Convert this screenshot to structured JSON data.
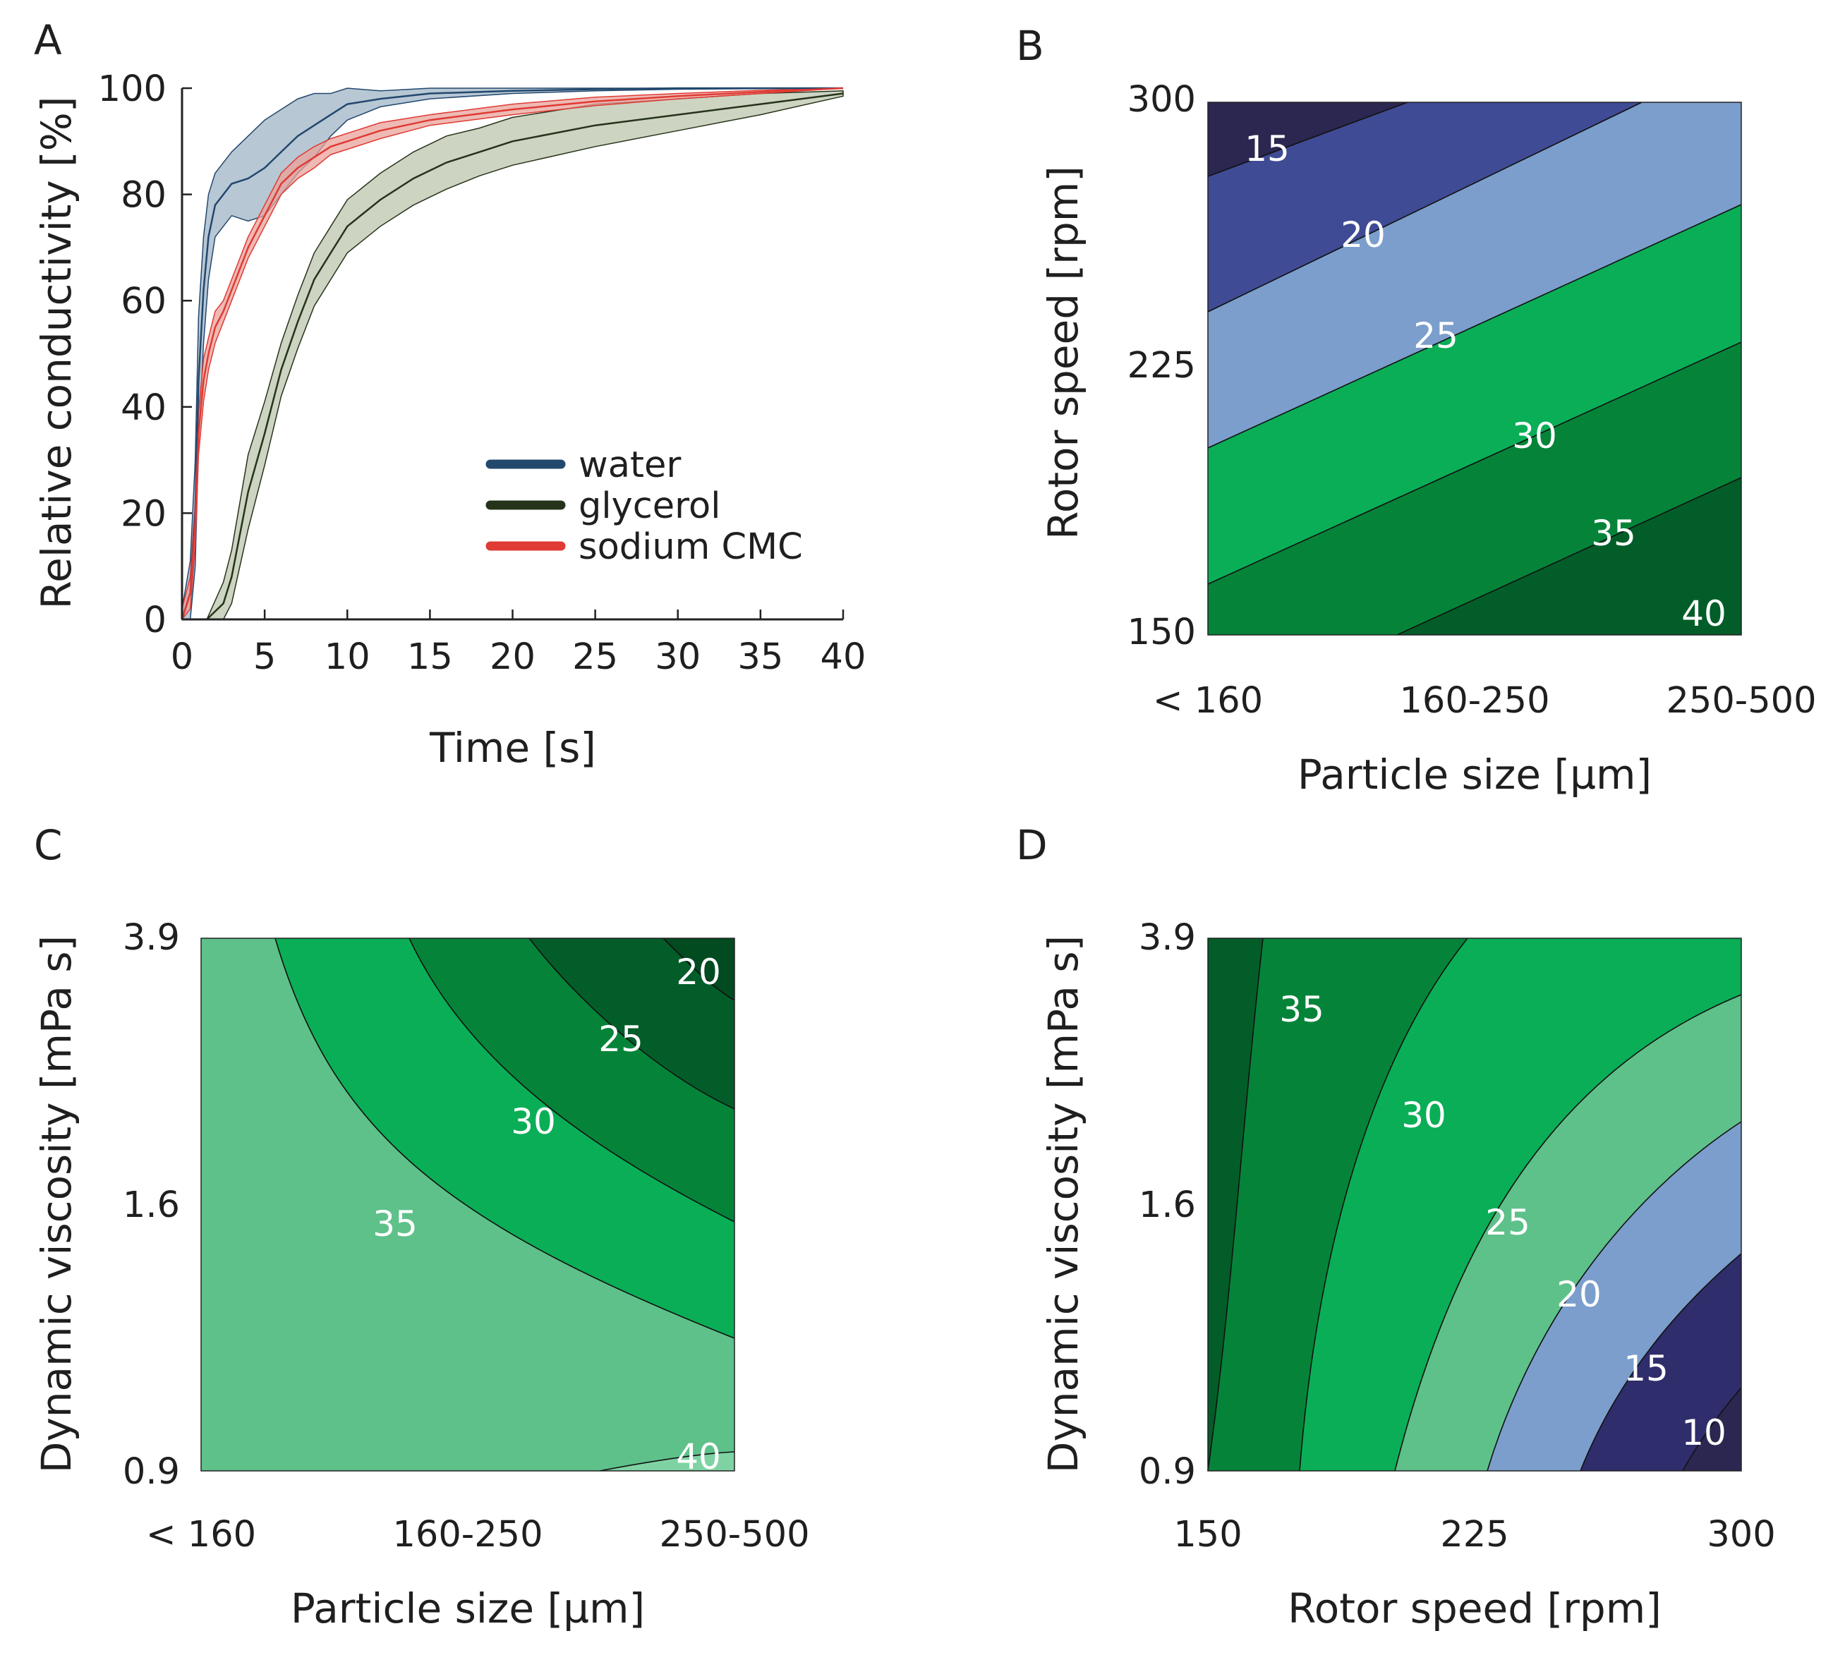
{
  "colors": {
    "water": "#23486e",
    "water_band": "#9fb4c6",
    "glycerol": "#26331a",
    "glycerol_band": "#bcc5ae",
    "sodium_cmc": "#e03a34",
    "sodium_cmc_band": "#eaa39b",
    "levels": {
      "5": "#2b2751",
      "10": "#2f2d6b",
      "15": "#3f4b94",
      "20": "#7b9ecc",
      "25": "#5ec18a",
      "30": "#0aae56",
      "35": "#058439",
      "40": "#035d29"
    }
  },
  "chart_data": [
    {
      "id": "A",
      "panel_label": "A",
      "type": "line",
      "xlabel": "Time [s]",
      "ylabel": "Relative conductivity [%]",
      "xlim": [
        0,
        40
      ],
      "ylim": [
        0,
        100
      ],
      "xticks": [
        "0",
        "5",
        "10",
        "15",
        "20",
        "25",
        "30",
        "35",
        "40"
      ],
      "yticks": [
        "0",
        "20",
        "40",
        "60",
        "80",
        "100"
      ],
      "legend": {
        "placement": "center-right",
        "entries": [
          "water",
          "glycerol",
          "sodium CMC"
        ]
      },
      "series": [
        {
          "name": "water",
          "x": [
            0,
            0.5,
            0.8,
            1.0,
            1.3,
            1.6,
            2,
            2.5,
            3,
            4,
            5,
            6,
            7,
            8,
            9,
            10,
            12,
            15,
            20,
            25,
            30,
            35,
            40
          ],
          "y": [
            0,
            5,
            20,
            45,
            62,
            72,
            78,
            80,
            82,
            83,
            85,
            88,
            91,
            93,
            95,
            97,
            98,
            99,
            99.5,
            99.8,
            100,
            100,
            100
          ],
          "band": [
            2,
            6,
            10,
            12,
            10,
            8,
            6,
            6,
            6,
            8,
            9,
            8,
            7,
            6,
            4,
            3,
            1.5,
            1,
            0.5,
            0.3,
            0.2,
            0.1,
            0
          ]
        },
        {
          "name": "glycerol",
          "x": [
            0,
            1.5,
            2.5,
            3,
            3.5,
            4,
            5,
            6,
            7,
            8,
            9,
            10,
            12,
            14,
            16,
            18,
            20,
            25,
            30,
            35,
            40
          ],
          "y": [
            0,
            0,
            3,
            8,
            16,
            24,
            35,
            47,
            56,
            64,
            69,
            74,
            79,
            83,
            86,
            88,
            90,
            93,
            95,
            97,
            99
          ],
          "band": [
            0,
            0,
            4,
            5,
            6,
            7,
            6,
            5,
            5,
            5,
            5,
            5,
            5,
            5,
            5,
            4.5,
            4.5,
            4,
            3,
            2,
            0.5
          ]
        },
        {
          "name": "sodium CMC",
          "x": [
            0,
            0.5,
            0.8,
            1.0,
            1.3,
            1.6,
            2,
            2.5,
            3,
            3.5,
            4,
            5,
            6,
            7,
            8,
            9,
            10,
            12,
            15,
            20,
            25,
            30,
            35,
            40
          ],
          "y": [
            0,
            5,
            18,
            35,
            45,
            50,
            55,
            58,
            62,
            66,
            70,
            76,
            82,
            85,
            87,
            89,
            90,
            92,
            94,
            96,
            97.5,
            98.5,
            99.3,
            100
          ],
          "band": [
            2,
            3,
            4,
            4,
            4,
            3,
            3,
            2,
            2,
            2,
            2,
            2,
            2,
            2,
            2,
            1.5,
            1.5,
            1.5,
            1,
            1,
            0.8,
            0.5,
            0.3,
            0
          ]
        }
      ]
    },
    {
      "id": "B",
      "panel_label": "B",
      "type": "contour",
      "xlabel": "Particle size [µm]",
      "ylabel": "Rotor speed [rpm]",
      "xticks": [
        "< 160",
        "160-250",
        "250-500"
      ],
      "yticks": [
        "150",
        "225",
        "300"
      ],
      "contour_labels": [
        "15",
        "20",
        "25",
        "30",
        "35",
        "40"
      ]
    },
    {
      "id": "C",
      "panel_label": "C",
      "type": "contour",
      "xlabel": "Particle size [µm]",
      "ylabel": "Dynamic viscosity [mPa s]",
      "xticks": [
        "< 160",
        "160-250",
        "250-500"
      ],
      "yticks": [
        "0.9",
        "1.6",
        "3.9"
      ],
      "contour_labels": [
        "20",
        "25",
        "30",
        "35",
        "40"
      ]
    },
    {
      "id": "D",
      "panel_label": "D",
      "type": "contour",
      "xlabel": "Rotor speed [rpm]",
      "ylabel": "Dynamic viscosity [mPa s]",
      "xticks": [
        "150",
        "225",
        "300"
      ],
      "yticks": [
        "0.9",
        "1.6",
        "3.9"
      ],
      "contour_labels": [
        "35",
        "30",
        "25",
        "20",
        "15",
        "10"
      ]
    }
  ]
}
